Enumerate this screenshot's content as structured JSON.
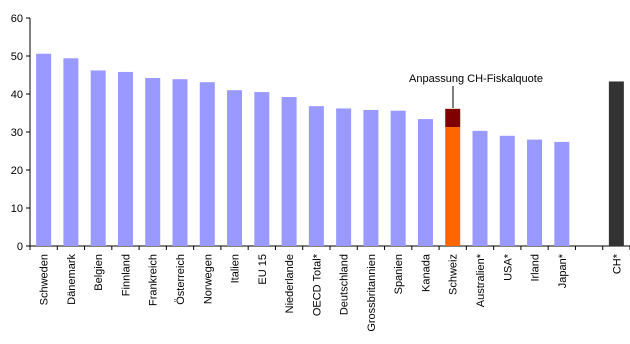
{
  "chart_data": {
    "type": "bar",
    "title": "",
    "xlabel": "",
    "ylabel": "",
    "ylim": [
      0,
      60
    ],
    "yticks": [
      0,
      10,
      20,
      30,
      40,
      50,
      60
    ],
    "grid": false,
    "legend": "none",
    "colors": {
      "default": "#9999ff",
      "highlight_base": "#ff6600",
      "highlight_extra": "#800000",
      "ch_star": "#333333"
    },
    "categories": [
      "Schweden",
      "Dänemark",
      "Belgien",
      "Finnland",
      "Frankreich",
      "Österreich",
      "Norwegen",
      "Italien",
      "EU 15",
      "Niederlande",
      "OECD Total*",
      "Deutschland",
      "Grossbritannien",
      "Spanien",
      "Kanada",
      "Schweiz",
      "Australien*",
      "USA*",
      "Irland",
      "Japan*",
      "",
      "CH*"
    ],
    "values": [
      50.6,
      49.4,
      46.2,
      45.8,
      44.2,
      43.9,
      43.1,
      41.0,
      40.5,
      39.2,
      36.8,
      36.2,
      35.8,
      35.6,
      33.4,
      31.3,
      30.3,
      29.0,
      28.0,
      27.4,
      null,
      43.3
    ],
    "schweiz_adjustment": 4.8,
    "annotation": "Anpassung CH-Fiskalquote"
  }
}
